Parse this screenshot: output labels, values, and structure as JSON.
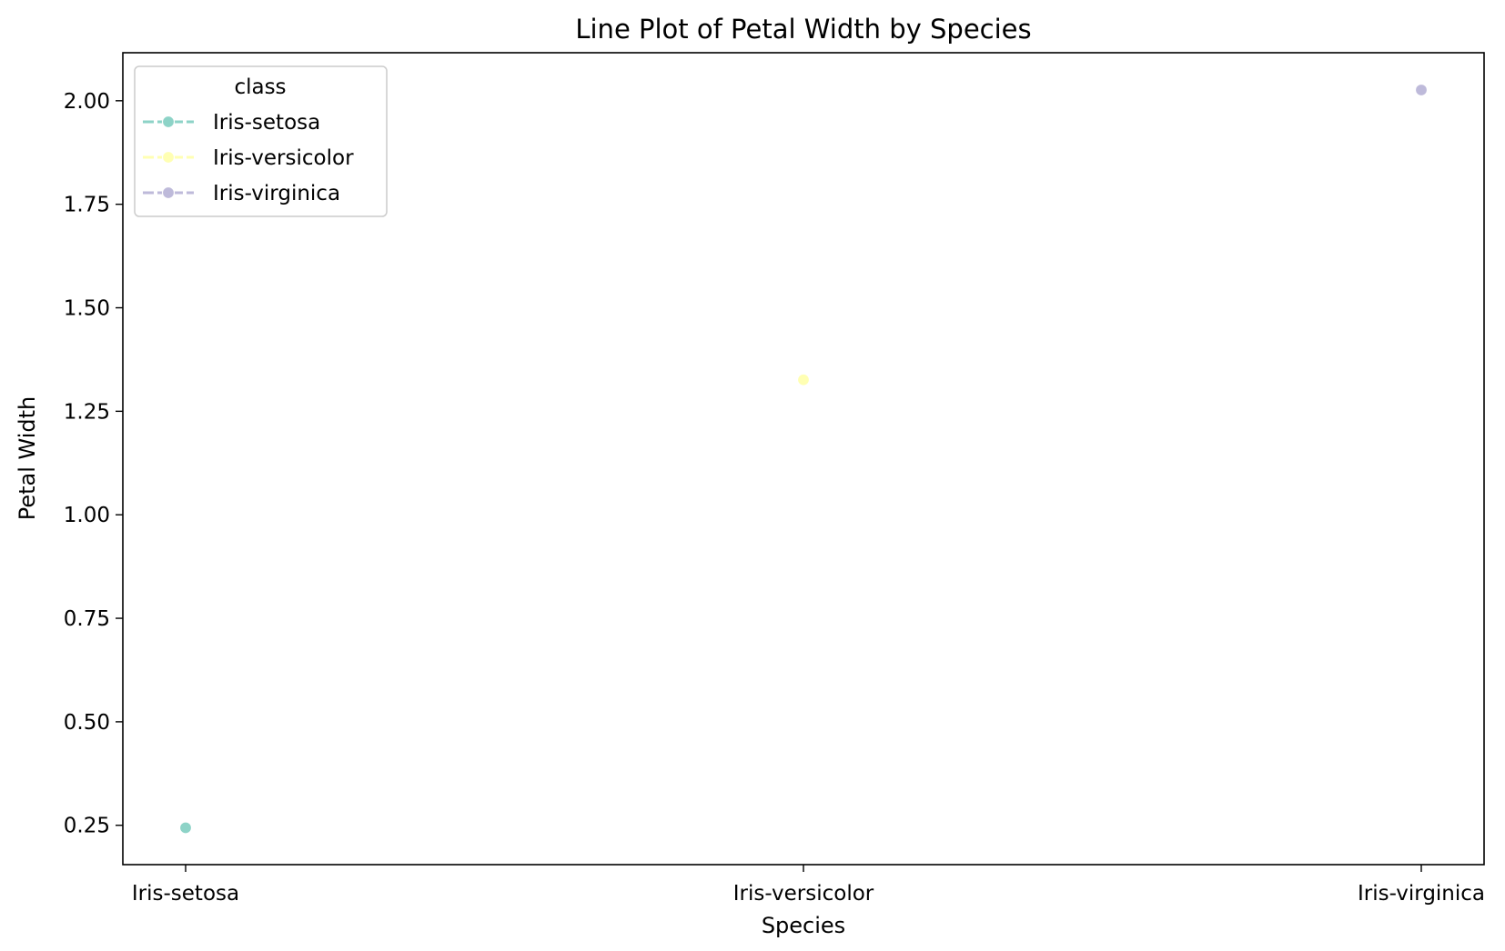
{
  "chart_data": {
    "type": "line",
    "title": "Line Plot of Petal Width by Species",
    "xlabel": "Species",
    "ylabel": "Petal Width",
    "categories": [
      "Iris-setosa",
      "Iris-versicolor",
      "Iris-virginica"
    ],
    "ylim": [
      0.155,
      2.116
    ],
    "yticks": [
      0.25,
      0.5,
      0.75,
      1.0,
      1.25,
      1.5,
      1.75,
      2.0
    ],
    "ytick_labels": [
      "0.25",
      "0.50",
      "0.75",
      "1.00",
      "1.25",
      "1.50",
      "1.75",
      "2.00"
    ],
    "grid": false,
    "legend": {
      "title": "class",
      "placement": "top-left"
    },
    "series": [
      {
        "name": "Iris-setosa",
        "color": "#8dd3c7",
        "points": [
          {
            "x": "Iris-setosa",
            "y": 0.244
          }
        ]
      },
      {
        "name": "Iris-versicolor",
        "color": "#ffffb3",
        "points": [
          {
            "x": "Iris-versicolor",
            "y": 1.326
          }
        ]
      },
      {
        "name": "Iris-virginica",
        "color": "#bebada",
        "points": [
          {
            "x": "Iris-virginica",
            "y": 2.026
          }
        ]
      }
    ]
  }
}
